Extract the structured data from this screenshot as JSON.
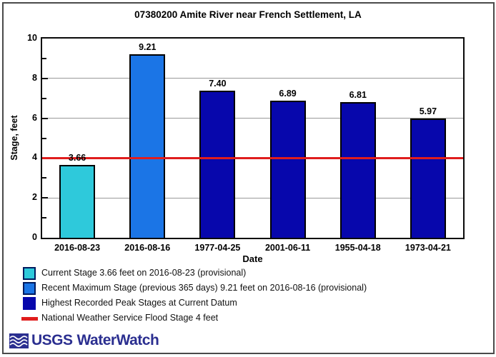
{
  "title": "07380200 Amite River near French Settlement, LA",
  "chart_data": {
    "type": "bar",
    "title": "07380200 Amite River near French Settlement, LA",
    "xlabel": "Date",
    "ylabel": "Stage, feet",
    "ylim": [
      0,
      10
    ],
    "ytick_major": [
      0,
      2,
      4,
      6,
      8,
      10
    ],
    "ytick_minor": [
      1,
      3,
      5,
      7,
      9
    ],
    "gridlines_at": [
      2,
      4,
      6,
      8
    ],
    "grid": "horizontal",
    "legend_position": "below",
    "categories": [
      "2016-08-23",
      "2016-08-16",
      "1977-04-25",
      "2001-06-11",
      "1955-04-18",
      "1973-04-21"
    ],
    "values": [
      3.66,
      9.21,
      7.4,
      6.89,
      6.81,
      5.97
    ],
    "value_labels": [
      "3.66",
      "9.21",
      "7.40",
      "6.89",
      "6.81",
      "5.97"
    ],
    "bar_colors": [
      "#2ec9db",
      "#1b75e6",
      "#0707ac",
      "#0707ac",
      "#0707ac",
      "#0707ac"
    ],
    "bar_border_color": "#000000",
    "reference_line": {
      "value": 4,
      "color": "#e01d1d",
      "label": "National Weather Service Flood Stage 4 feet"
    }
  },
  "legend": {
    "items": [
      {
        "swatch": "square",
        "color": "#2ec9db",
        "label": "Current Stage 3.66 feet on 2016-08-23 (provisional)"
      },
      {
        "swatch": "square",
        "color": "#1b75e6",
        "label": "Recent Maximum Stage (previous 365 days) 9.21 feet on 2016-08-16 (provisional)"
      },
      {
        "swatch": "square",
        "color": "#0707ac",
        "label": "Highest Recorded Peak Stages at Current Datum"
      },
      {
        "swatch": "line",
        "color": "#e01d1d",
        "label": "National Weather Service Flood Stage 4 feet"
      }
    ]
  },
  "footer": {
    "brand": "USGS",
    "product": "WaterWatch",
    "logo_color": "#2b2f90"
  },
  "colors": {
    "gridline": "#999999",
    "plot_border": "#0a0a0a",
    "outer_border": "#4a4a4a",
    "current_stage": "#2ec9db",
    "recent_max": "#1b75e6",
    "historic_peak": "#0707ac",
    "flood_line": "#e01d1d"
  }
}
